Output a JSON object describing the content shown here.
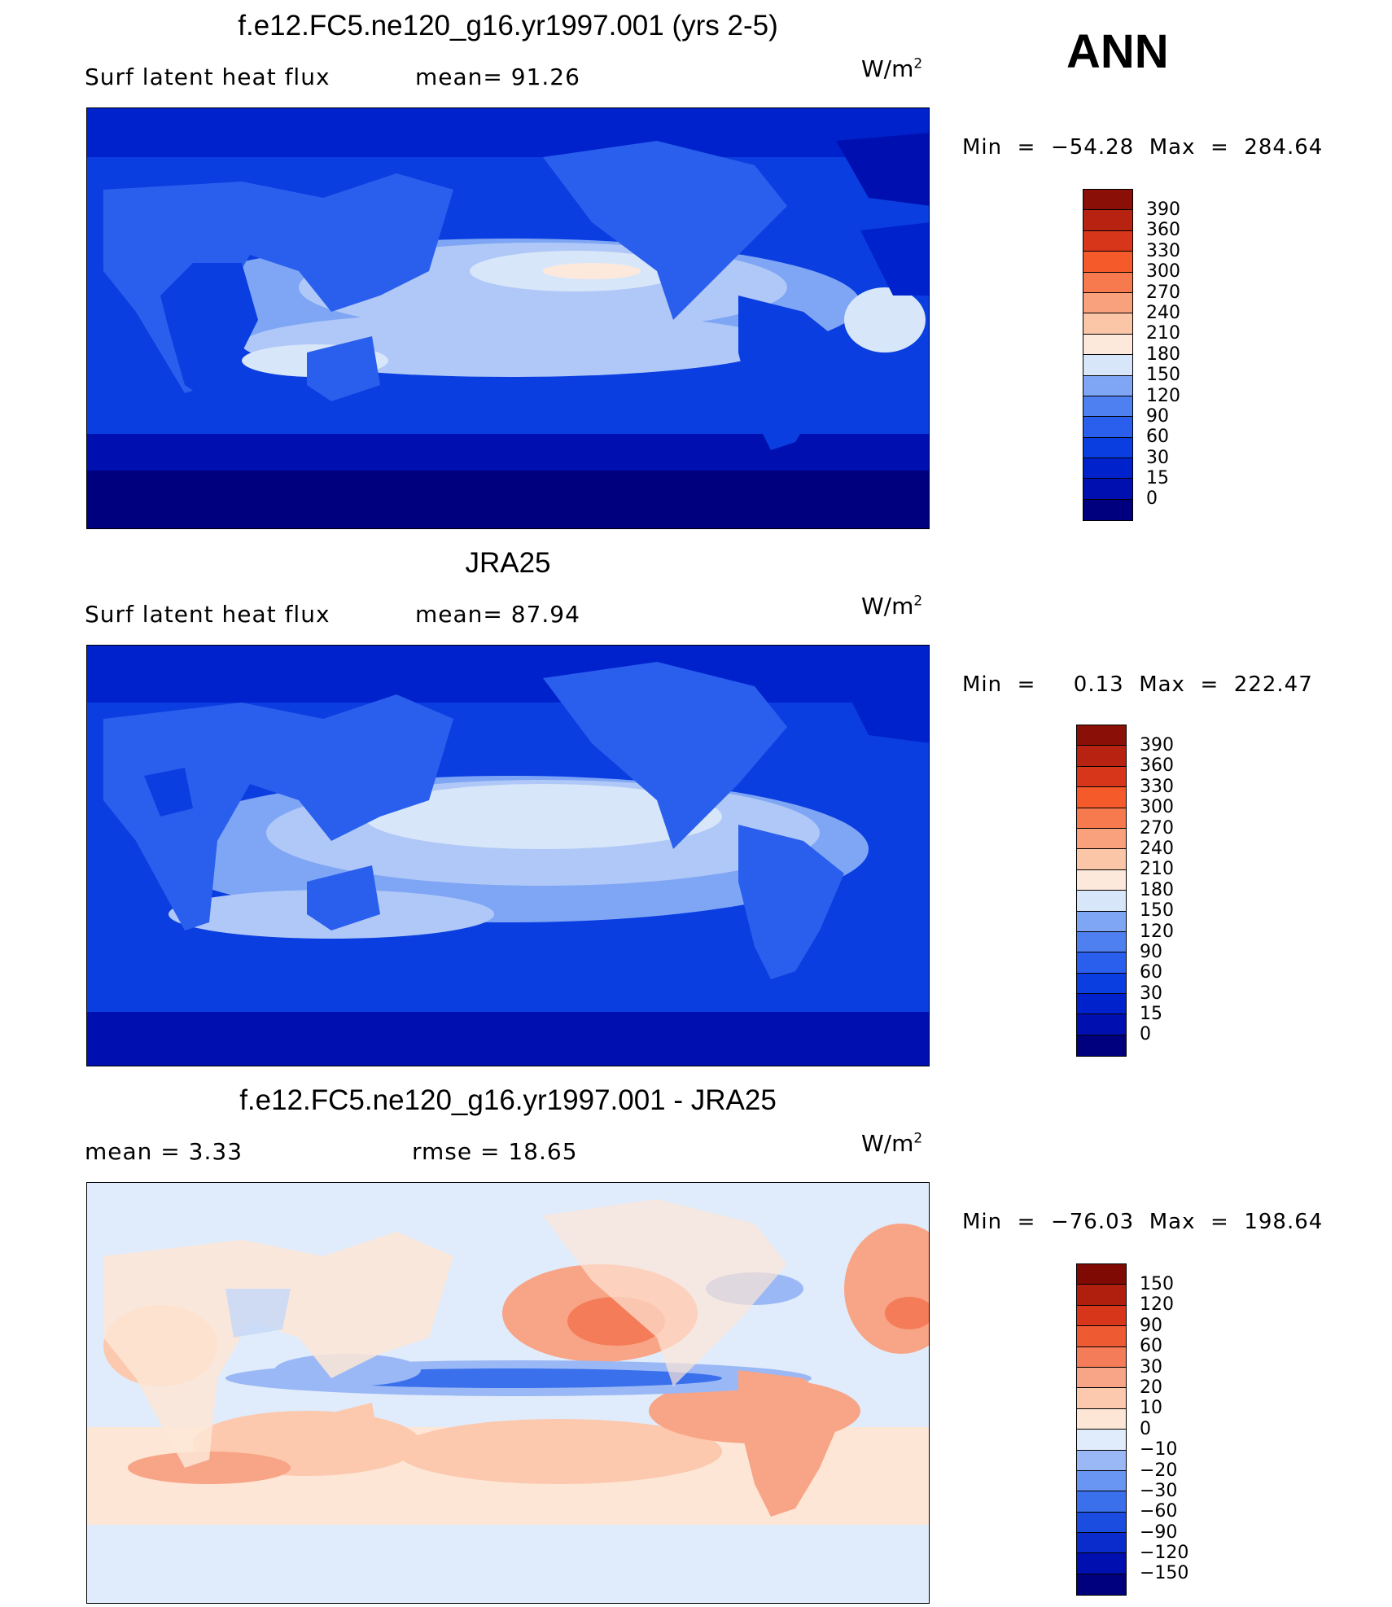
{
  "season": "ANN",
  "colors": {
    "abs_scale": [
      "#00007f",
      "#0010b0",
      "#0022cc",
      "#0a3ee0",
      "#2a5fee",
      "#4f80f2",
      "#7fa6f5",
      "#b0c8f7",
      "#d8e6fa",
      "#fde9dc",
      "#fbc6a8",
      "#f9a07c",
      "#f77a4e",
      "#f45a2a",
      "#d8361a",
      "#b82210",
      "#8a0f06"
    ],
    "diff_scale": [
      "#00007f",
      "#0010b0",
      "#0a2ccc",
      "#1a4de0",
      "#3a70ec",
      "#6896f2",
      "#9ab8f5",
      "#c4d8f8",
      "#e0ecfb",
      "#fde6d6",
      "#fcc8ae",
      "#f8a486",
      "#f47c58",
      "#ee5a32",
      "#d8361a",
      "#b01e0e",
      "#7f0a04"
    ]
  },
  "panels": [
    {
      "title": "f.e12.FC5.ne120_g16.yr1997.001 (yrs 2-5)",
      "left_text": "Surf  latent  heat  flux",
      "middle_text": "mean=   91.26",
      "units_base": "W/m",
      "units_exp": "2",
      "minmax": "Min  =  −54.28  Max  =  284.64",
      "colorbar_labels": [
        "390",
        "360",
        "330",
        "300",
        "270",
        "240",
        "210",
        "180",
        "150",
        "120",
        "90",
        "60",
        "30",
        "15",
        "0"
      ]
    },
    {
      "title": "JRA25",
      "left_text": "Surf  latent  heat  flux",
      "middle_text": "mean=   87.94",
      "units_base": "W/m",
      "units_exp": "2",
      "minmax": "Min  =     0.13  Max  =  222.47",
      "colorbar_labels": [
        "390",
        "360",
        "330",
        "300",
        "270",
        "240",
        "210",
        "180",
        "150",
        "120",
        "90",
        "60",
        "30",
        "15",
        "0"
      ]
    },
    {
      "title": "f.e12.FC5.ne120_g16.yr1997.001 - JRA25",
      "left_text": "mean  =     3.33",
      "middle_text": "rmse  =    18.65",
      "units_base": "W/m",
      "units_exp": "2",
      "minmax": "Min  =  −76.03  Max  =  198.64",
      "colorbar_labels": [
        "150",
        "120",
        "90",
        "60",
        "30",
        "20",
        "10",
        "0",
        "−10",
        "−20",
        "−30",
        "−60",
        "−90",
        "−120",
        "−150"
      ]
    }
  ]
}
